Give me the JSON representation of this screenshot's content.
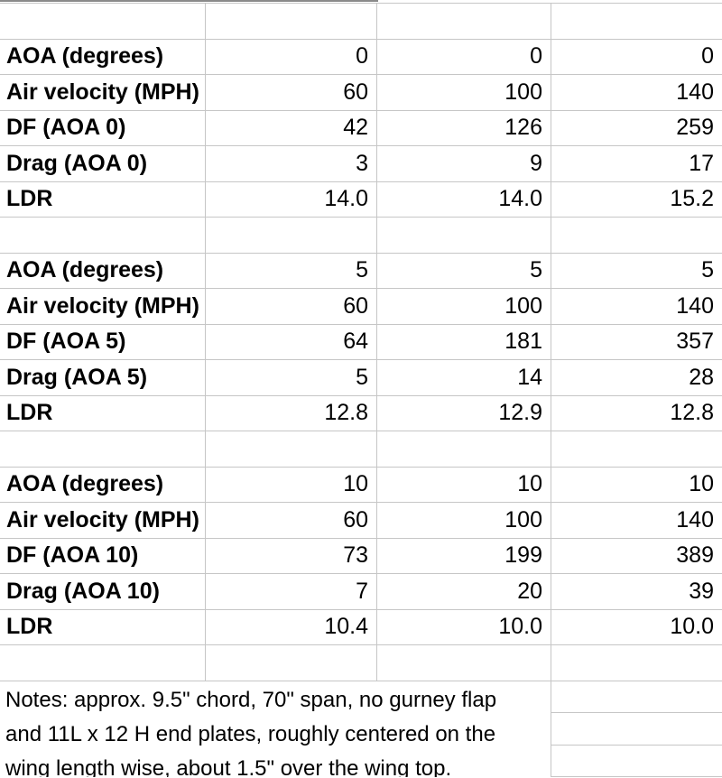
{
  "app": {
    "type": "spreadsheet-grid-view"
  },
  "colors": {
    "grid_line": "#c6c6c6",
    "top_partial_border": "#8a8a8a",
    "text": "#000000",
    "background": "#ffffff"
  },
  "table": {
    "sections": [
      {
        "rows": [
          {
            "label": "AOA (degrees)",
            "values": [
              "0",
              "0",
              "0"
            ]
          },
          {
            "label": "Air velocity (MPH)",
            "values": [
              "60",
              "100",
              "140"
            ]
          },
          {
            "label": "DF (AOA 0)",
            "values": [
              "42",
              "126",
              "259"
            ]
          },
          {
            "label": "Drag (AOA 0)",
            "values": [
              "3",
              "9",
              "17"
            ]
          },
          {
            "label": "LDR",
            "values": [
              "14.0",
              "14.0",
              "15.2"
            ]
          }
        ]
      },
      {
        "rows": [
          {
            "label": "AOA (degrees)",
            "values": [
              "5",
              "5",
              "5"
            ]
          },
          {
            "label": "Air velocity (MPH)",
            "values": [
              "60",
              "100",
              "140"
            ]
          },
          {
            "label": "DF (AOA 5)",
            "values": [
              "64",
              "181",
              "357"
            ]
          },
          {
            "label": "Drag (AOA 5)",
            "values": [
              "5",
              "14",
              "28"
            ]
          },
          {
            "label": "LDR",
            "values": [
              "12.8",
              "12.9",
              "12.8"
            ]
          }
        ]
      },
      {
        "rows": [
          {
            "label": "AOA (degrees)",
            "values": [
              "10",
              "10",
              "10"
            ]
          },
          {
            "label": "Air velocity (MPH)",
            "values": [
              "60",
              "100",
              "140"
            ]
          },
          {
            "label": "DF (AOA 10)",
            "values": [
              "73",
              "199",
              "389"
            ]
          },
          {
            "label": "Drag (AOA 10)",
            "values": [
              "7",
              "20",
              "39"
            ]
          },
          {
            "label": "LDR",
            "values": [
              "10.4",
              "10.0",
              "10.0"
            ]
          }
        ]
      }
    ],
    "notes_lines": [
      "Notes: approx. 9.5\" chord, 70\" span, no gurney flap",
      "and 11L x 12 H end plates, roughly centered on the",
      "wing length wise, about 1.5\" over the wing top."
    ]
  }
}
